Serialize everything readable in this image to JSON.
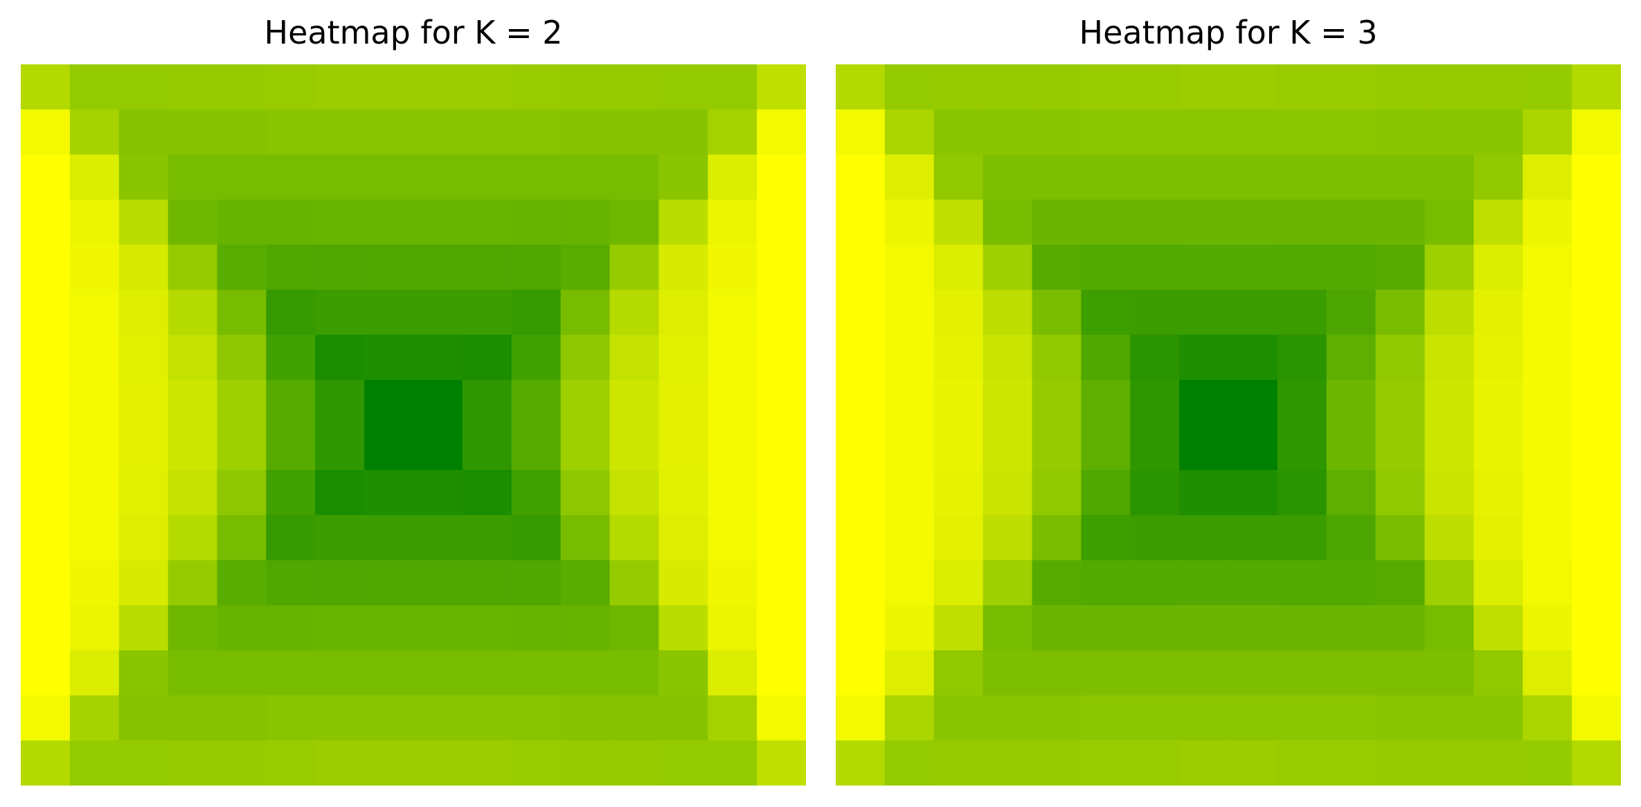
{
  "colors": {
    "low": "#008000",
    "high": "#ffff00",
    "background": "#ffffff"
  },
  "chart_data": [
    {
      "type": "heatmap",
      "title": "Heatmap for K = 2",
      "axes_visible": false,
      "colormap": "summer",
      "value_range": [
        0,
        1
      ],
      "rows": 16,
      "cols": 16,
      "values": [
        [
          0.7,
          0.58,
          0.58,
          0.59,
          0.59,
          0.6,
          0.61,
          0.61,
          0.61,
          0.61,
          0.6,
          0.59,
          0.59,
          0.58,
          0.58,
          0.75
        ],
        [
          0.95,
          0.65,
          0.53,
          0.53,
          0.53,
          0.54,
          0.54,
          0.54,
          0.54,
          0.54,
          0.54,
          0.53,
          0.53,
          0.53,
          0.65,
          0.95
        ],
        [
          1.0,
          0.86,
          0.54,
          0.47,
          0.47,
          0.47,
          0.47,
          0.47,
          0.47,
          0.47,
          0.47,
          0.47,
          0.47,
          0.54,
          0.86,
          1.0
        ],
        [
          1.0,
          0.92,
          0.73,
          0.44,
          0.4,
          0.4,
          0.41,
          0.41,
          0.41,
          0.41,
          0.4,
          0.4,
          0.44,
          0.73,
          0.92,
          1.0
        ],
        [
          1.0,
          0.94,
          0.84,
          0.59,
          0.35,
          0.31,
          0.31,
          0.31,
          0.31,
          0.31,
          0.31,
          0.35,
          0.59,
          0.84,
          0.94,
          1.0
        ],
        [
          1.0,
          0.95,
          0.87,
          0.71,
          0.47,
          0.21,
          0.23,
          0.23,
          0.23,
          0.23,
          0.21,
          0.47,
          0.71,
          0.87,
          0.95,
          1.0
        ],
        [
          1.0,
          0.96,
          0.88,
          0.77,
          0.56,
          0.25,
          0.1,
          0.12,
          0.12,
          0.1,
          0.25,
          0.56,
          0.77,
          0.88,
          0.96,
          1.0
        ],
        [
          1.0,
          0.96,
          0.89,
          0.8,
          0.62,
          0.34,
          0.18,
          0.0,
          0.0,
          0.18,
          0.34,
          0.62,
          0.8,
          0.89,
          0.96,
          1.0
        ],
        [
          1.0,
          0.96,
          0.89,
          0.8,
          0.62,
          0.34,
          0.18,
          0.0,
          0.0,
          0.18,
          0.34,
          0.62,
          0.8,
          0.89,
          0.96,
          1.0
        ],
        [
          1.0,
          0.96,
          0.88,
          0.77,
          0.56,
          0.25,
          0.1,
          0.12,
          0.12,
          0.1,
          0.25,
          0.56,
          0.77,
          0.88,
          0.96,
          1.0
        ],
        [
          1.0,
          0.95,
          0.87,
          0.71,
          0.47,
          0.21,
          0.23,
          0.23,
          0.23,
          0.23,
          0.21,
          0.47,
          0.71,
          0.87,
          0.95,
          1.0
        ],
        [
          1.0,
          0.94,
          0.84,
          0.59,
          0.35,
          0.31,
          0.31,
          0.31,
          0.31,
          0.31,
          0.31,
          0.35,
          0.59,
          0.84,
          0.94,
          1.0
        ],
        [
          1.0,
          0.92,
          0.73,
          0.44,
          0.4,
          0.4,
          0.41,
          0.41,
          0.41,
          0.41,
          0.4,
          0.4,
          0.44,
          0.73,
          0.92,
          1.0
        ],
        [
          1.0,
          0.86,
          0.54,
          0.47,
          0.47,
          0.47,
          0.47,
          0.47,
          0.47,
          0.47,
          0.47,
          0.47,
          0.47,
          0.54,
          0.86,
          1.0
        ],
        [
          0.95,
          0.65,
          0.53,
          0.53,
          0.53,
          0.54,
          0.54,
          0.54,
          0.54,
          0.54,
          0.54,
          0.53,
          0.53,
          0.53,
          0.65,
          0.95
        ],
        [
          0.7,
          0.58,
          0.58,
          0.59,
          0.59,
          0.6,
          0.61,
          0.61,
          0.61,
          0.61,
          0.6,
          0.59,
          0.59,
          0.58,
          0.58,
          0.75
        ]
      ]
    },
    {
      "type": "heatmap",
      "title": "Heatmap for K = 3",
      "axes_visible": false,
      "colormap": "summer",
      "value_range": [
        0,
        1
      ],
      "rows": 16,
      "cols": 16,
      "values": [
        [
          0.7,
          0.58,
          0.59,
          0.59,
          0.59,
          0.6,
          0.6,
          0.61,
          0.61,
          0.6,
          0.6,
          0.59,
          0.59,
          0.59,
          0.58,
          0.7
        ],
        [
          0.95,
          0.67,
          0.54,
          0.54,
          0.54,
          0.55,
          0.55,
          0.55,
          0.55,
          0.55,
          0.55,
          0.54,
          0.54,
          0.54,
          0.67,
          0.95
        ],
        [
          1.0,
          0.87,
          0.57,
          0.49,
          0.49,
          0.49,
          0.49,
          0.49,
          0.49,
          0.49,
          0.49,
          0.49,
          0.49,
          0.57,
          0.87,
          1.0
        ],
        [
          1.0,
          0.93,
          0.75,
          0.47,
          0.42,
          0.42,
          0.42,
          0.42,
          0.42,
          0.42,
          0.42,
          0.42,
          0.47,
          0.75,
          0.93,
          1.0
        ],
        [
          1.0,
          0.95,
          0.86,
          0.62,
          0.34,
          0.32,
          0.32,
          0.33,
          0.33,
          0.32,
          0.32,
          0.34,
          0.62,
          0.86,
          0.95,
          1.0
        ],
        [
          1.0,
          0.96,
          0.89,
          0.74,
          0.48,
          0.24,
          0.23,
          0.23,
          0.23,
          0.23,
          0.3,
          0.48,
          0.74,
          0.89,
          0.96,
          1.0
        ],
        [
          1.0,
          0.96,
          0.9,
          0.79,
          0.57,
          0.31,
          0.16,
          0.12,
          0.12,
          0.16,
          0.37,
          0.57,
          0.79,
          0.9,
          0.96,
          1.0
        ],
        [
          1.0,
          0.96,
          0.91,
          0.8,
          0.59,
          0.37,
          0.18,
          0.0,
          0.0,
          0.18,
          0.43,
          0.59,
          0.8,
          0.91,
          0.96,
          1.0
        ],
        [
          1.0,
          0.96,
          0.91,
          0.8,
          0.59,
          0.37,
          0.18,
          0.0,
          0.0,
          0.18,
          0.43,
          0.59,
          0.8,
          0.91,
          0.96,
          1.0
        ],
        [
          1.0,
          0.96,
          0.9,
          0.79,
          0.57,
          0.31,
          0.16,
          0.12,
          0.12,
          0.16,
          0.37,
          0.57,
          0.79,
          0.9,
          0.96,
          1.0
        ],
        [
          1.0,
          0.96,
          0.89,
          0.74,
          0.48,
          0.24,
          0.23,
          0.23,
          0.23,
          0.23,
          0.3,
          0.48,
          0.74,
          0.89,
          0.96,
          1.0
        ],
        [
          1.0,
          0.95,
          0.86,
          0.62,
          0.34,
          0.32,
          0.32,
          0.33,
          0.33,
          0.32,
          0.32,
          0.34,
          0.62,
          0.86,
          0.95,
          1.0
        ],
        [
          1.0,
          0.93,
          0.75,
          0.47,
          0.42,
          0.42,
          0.42,
          0.42,
          0.42,
          0.42,
          0.42,
          0.42,
          0.47,
          0.75,
          0.93,
          1.0
        ],
        [
          1.0,
          0.87,
          0.57,
          0.49,
          0.49,
          0.49,
          0.49,
          0.49,
          0.49,
          0.49,
          0.49,
          0.49,
          0.49,
          0.57,
          0.87,
          1.0
        ],
        [
          0.95,
          0.67,
          0.54,
          0.54,
          0.54,
          0.55,
          0.55,
          0.55,
          0.55,
          0.55,
          0.55,
          0.54,
          0.54,
          0.54,
          0.67,
          0.95
        ],
        [
          0.7,
          0.58,
          0.59,
          0.59,
          0.59,
          0.6,
          0.6,
          0.61,
          0.61,
          0.6,
          0.6,
          0.59,
          0.59,
          0.59,
          0.58,
          0.7
        ]
      ]
    }
  ]
}
